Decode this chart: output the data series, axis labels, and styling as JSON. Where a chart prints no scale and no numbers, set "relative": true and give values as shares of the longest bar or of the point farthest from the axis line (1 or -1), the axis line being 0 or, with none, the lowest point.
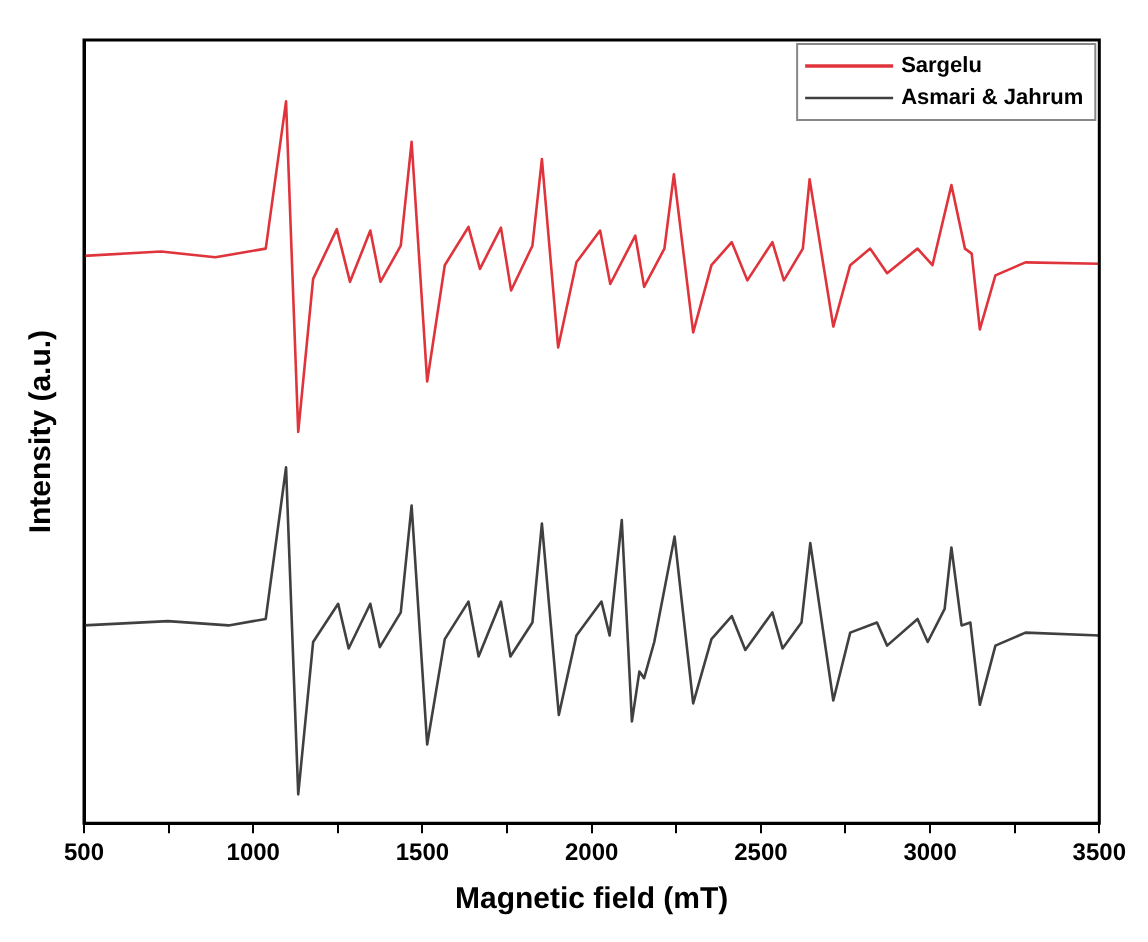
{
  "chart_data": {
    "type": "line",
    "xlabel": "Magnetic field (mT)",
    "ylabel": "Intensity (a.u.)",
    "relative": true,
    "legend": "top right",
    "marker": "none",
    "grid": false,
    "xlim": [
      500,
      3500
    ],
    "xticks": [
      500,
      {
        "value": 750,
        "label": null
      },
      1000,
      {
        "value": 1250,
        "label": null
      },
      1500,
      {
        "value": 1750,
        "label": null
      },
      2000,
      {
        "value": 2250,
        "label": null
      },
      2500,
      {
        "value": 2750,
        "label": null
      },
      3000,
      {
        "value": 3250,
        "label": null
      },
      3500
    ],
    "series": [
      {
        "name": "Sargelu",
        "color": "#e0343c",
        "x": [
          500,
          728,
          888,
          1037,
          1097,
          1133,
          1177,
          1247,
          1286,
          1346,
          1376,
          1436,
          1468,
          1514,
          1566,
          1636,
          1670,
          1732,
          1762,
          1825,
          1853,
          1901,
          1955,
          2025,
          2055,
          2129,
          2155,
          2215,
          2243,
          2300,
          2354,
          2414,
          2460,
          2534,
          2568,
          2624,
          2644,
          2714,
          2764,
          2823,
          2873,
          2963,
          3007,
          3063,
          3103,
          3123,
          3147,
          3193,
          3282,
          3500
        ],
        "values": [
          0.786,
          0.792,
          0.784,
          0.796,
          1.0,
          0.542,
          0.754,
          0.823,
          0.75,
          0.821,
          0.75,
          0.8,
          0.944,
          0.612,
          0.773,
          0.826,
          0.768,
          0.825,
          0.738,
          0.8,
          0.92,
          0.659,
          0.777,
          0.821,
          0.747,
          0.814,
          0.743,
          0.796,
          0.899,
          0.68,
          0.773,
          0.805,
          0.752,
          0.805,
          0.752,
          0.796,
          0.892,
          0.688,
          0.773,
          0.796,
          0.762,
          0.796,
          0.773,
          0.884,
          0.796,
          0.789,
          0.684,
          0.759,
          0.777,
          0.775
        ]
      },
      {
        "name": "Asmari & Jahrum",
        "color": "#404040",
        "x": [
          500,
          748,
          927,
          1037,
          1097,
          1133,
          1177,
          1251,
          1282,
          1346,
          1374,
          1436,
          1468,
          1514,
          1566,
          1636,
          1666,
          1732,
          1760,
          1825,
          1853,
          1903,
          1955,
          2029,
          2053,
          2089,
          2119,
          2141,
          2155,
          2185,
          2245,
          2300,
          2354,
          2414,
          2454,
          2534,
          2564,
          2620,
          2646,
          2714,
          2764,
          2843,
          2873,
          2963,
          2993,
          3043,
          3063,
          3093,
          3119,
          3147,
          3193,
          3282,
          3500
        ],
        "values": [
          0.274,
          0.28,
          0.274,
          0.283,
          0.493,
          0.04,
          0.251,
          0.304,
          0.242,
          0.304,
          0.244,
          0.292,
          0.44,
          0.109,
          0.255,
          0.307,
          0.231,
          0.307,
          0.231,
          0.278,
          0.415,
          0.15,
          0.26,
          0.307,
          0.26,
          0.42,
          0.141,
          0.21,
          0.201,
          0.251,
          0.397,
          0.166,
          0.255,
          0.287,
          0.24,
          0.292,
          0.242,
          0.278,
          0.388,
          0.17,
          0.264,
          0.278,
          0.246,
          0.283,
          0.251,
          0.297,
          0.382,
          0.274,
          0.278,
          0.164,
          0.246,
          0.264,
          0.26
        ]
      }
    ]
  }
}
